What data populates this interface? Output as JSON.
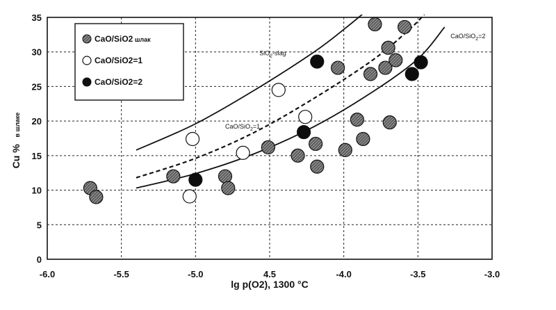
{
  "chart_data": {
    "type": "scatter",
    "xlabel": "lg p(O2), 1300 °C",
    "ylabel_main": "Cu %",
    "ylabel_sub": "в шлаке",
    "xlim": [
      -6.0,
      -3.0
    ],
    "ylim": [
      0,
      35
    ],
    "x_ticks": [
      "-6.0",
      "-5.5",
      "-5.0",
      "4.5",
      "-4.0",
      "-3.5",
      "-3.0"
    ],
    "x_tick_values": [
      -6.0,
      -5.5,
      -5.0,
      -4.5,
      -4.0,
      -3.5,
      -3.0
    ],
    "y_ticks": [
      0,
      5,
      10,
      15,
      20,
      25,
      30,
      35
    ],
    "grid": true,
    "legend_position": "top-left",
    "legend": [
      {
        "label": "CaO/SiO2",
        "suffix": " шлак",
        "marker": "hatched"
      },
      {
        "label": "CaO/SiO2=1",
        "suffix": "",
        "marker": "open"
      },
      {
        "label": "CaO/SiO2=2",
        "suffix": "",
        "marker": "filled"
      }
    ],
    "series": [
      {
        "name": "CaO/SiO2 шлак",
        "marker": "hatched",
        "points": [
          [
            -5.71,
            10.3
          ],
          [
            -5.67,
            9.0
          ],
          [
            -5.15,
            12.0
          ],
          [
            -4.8,
            12.0
          ],
          [
            -4.78,
            10.3
          ],
          [
            -4.51,
            16.2
          ],
          [
            -4.31,
            15.0
          ],
          [
            -4.19,
            16.7
          ],
          [
            -4.18,
            13.4
          ],
          [
            -4.04,
            27.7
          ],
          [
            -3.99,
            15.8
          ],
          [
            -3.91,
            20.2
          ],
          [
            -3.87,
            17.4
          ],
          [
            -3.82,
            26.8
          ],
          [
            -3.79,
            34.0
          ],
          [
            -3.72,
            27.7
          ],
          [
            -3.7,
            30.6
          ],
          [
            -3.69,
            19.8
          ],
          [
            -3.65,
            28.8
          ],
          [
            -3.59,
            33.6
          ]
        ]
      },
      {
        "name": "CaO/SiO2=1",
        "marker": "open",
        "points": [
          [
            -5.04,
            9.1
          ],
          [
            -5.02,
            17.4
          ],
          [
            -4.68,
            15.4
          ],
          [
            -4.44,
            24.5
          ],
          [
            -4.26,
            20.6
          ]
        ]
      },
      {
        "name": "CaO/SiO2=2",
        "marker": "filled",
        "points": [
          [
            -5.0,
            11.5
          ],
          [
            -4.27,
            18.4
          ],
          [
            -4.18,
            28.6
          ],
          [
            -3.54,
            26.8
          ],
          [
            -3.48,
            28.5
          ]
        ]
      }
    ],
    "curves": [
      {
        "name": "SiO2-slag",
        "style": "solid",
        "points": [
          [
            -5.4,
            15.8
          ],
          [
            -5.0,
            19.6
          ],
          [
            -4.6,
            24.5
          ],
          [
            -4.2,
            30.0
          ],
          [
            -3.98,
            33.6
          ],
          [
            -3.85,
            35.9
          ]
        ]
      },
      {
        "name": "CaO/SiO2=1",
        "style": "dashed",
        "points": [
          [
            -5.4,
            11.8
          ],
          [
            -5.0,
            14.6
          ],
          [
            -4.6,
            18.4
          ],
          [
            -4.2,
            23.3
          ],
          [
            -3.8,
            28.9
          ],
          [
            -3.55,
            33.4
          ],
          [
            -3.45,
            35.6
          ]
        ]
      },
      {
        "name": "CaO/SiO2=2",
        "style": "solid",
        "points": [
          [
            -5.4,
            10.3
          ],
          [
            -5.0,
            12.4
          ],
          [
            -4.6,
            15.3
          ],
          [
            -4.2,
            19.2
          ],
          [
            -3.8,
            24.3
          ],
          [
            -3.5,
            29.0
          ],
          [
            -3.32,
            33.6
          ]
        ]
      }
    ],
    "annotations": [
      {
        "text": "SiO",
        "sub": "2",
        "rest": "-slag",
        "at": [
          -4.57,
          29.5
        ]
      },
      {
        "text": "CaO/SiO",
        "sub": "2",
        "rest": "=1",
        "at": [
          -4.8,
          18.9
        ]
      },
      {
        "text": "CaO/SiO",
        "sub": "2",
        "rest": "=2",
        "at": [
          -3.28,
          32.0
        ]
      }
    ]
  }
}
